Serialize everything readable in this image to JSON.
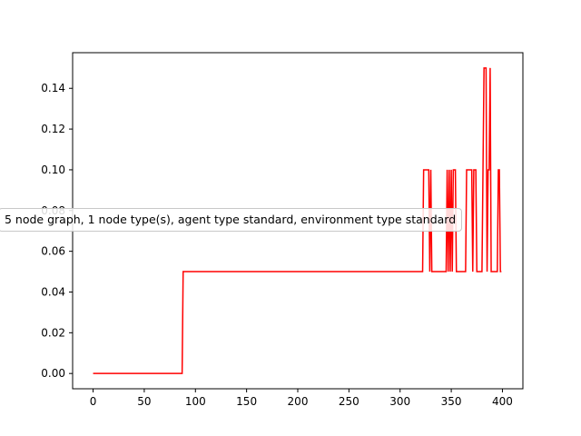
{
  "chart_data": {
    "type": "line",
    "title": "",
    "xlabel": "",
    "ylabel": "",
    "xlim": [
      -20,
      420
    ],
    "ylim": [
      -0.0075,
      0.1575
    ],
    "xticks": [
      "0",
      "50",
      "100",
      "150",
      "200",
      "250",
      "300",
      "350",
      "400"
    ],
    "yticks": [
      "0.00",
      "0.02",
      "0.04",
      "0.06",
      "0.08",
      "0.10",
      "0.12",
      "0.14"
    ],
    "grid": false,
    "annotation": "5 node graph, 1 node type(s), agent type standard, environment type standard",
    "series": [
      {
        "color": "#ff0000",
        "drawstyle": "steps",
        "points": [
          [
            0,
            0
          ],
          [
            87,
            0
          ],
          [
            88,
            0.05
          ],
          [
            322,
            0.05
          ],
          [
            323,
            0.1
          ],
          [
            328,
            0.1
          ],
          [
            329,
            0.05
          ],
          [
            330,
            0.1
          ],
          [
            331,
            0.05
          ],
          [
            345,
            0.05
          ],
          [
            346,
            0.1
          ],
          [
            347,
            0.05
          ],
          [
            348,
            0.1
          ],
          [
            349,
            0.05
          ],
          [
            350,
            0.1
          ],
          [
            351,
            0.05
          ],
          [
            352,
            0.1
          ],
          [
            354,
            0.1
          ],
          [
            355,
            0.05
          ],
          [
            364,
            0.05
          ],
          [
            365,
            0.1
          ],
          [
            370,
            0.1
          ],
          [
            371,
            0.05
          ],
          [
            372,
            0.1
          ],
          [
            374,
            0.1
          ],
          [
            375,
            0.05
          ],
          [
            380,
            0.05
          ],
          [
            381,
            0.1
          ],
          [
            382,
            0.15
          ],
          [
            384,
            0.15
          ],
          [
            385,
            0.05
          ],
          [
            386,
            0.1
          ],
          [
            387,
            0.1
          ],
          [
            388,
            0.15
          ],
          [
            389,
            0.05
          ],
          [
            395,
            0.05
          ],
          [
            396,
            0.1
          ],
          [
            397,
            0.1
          ],
          [
            398,
            0.05
          ],
          [
            399,
            0.05
          ]
        ]
      }
    ]
  }
}
